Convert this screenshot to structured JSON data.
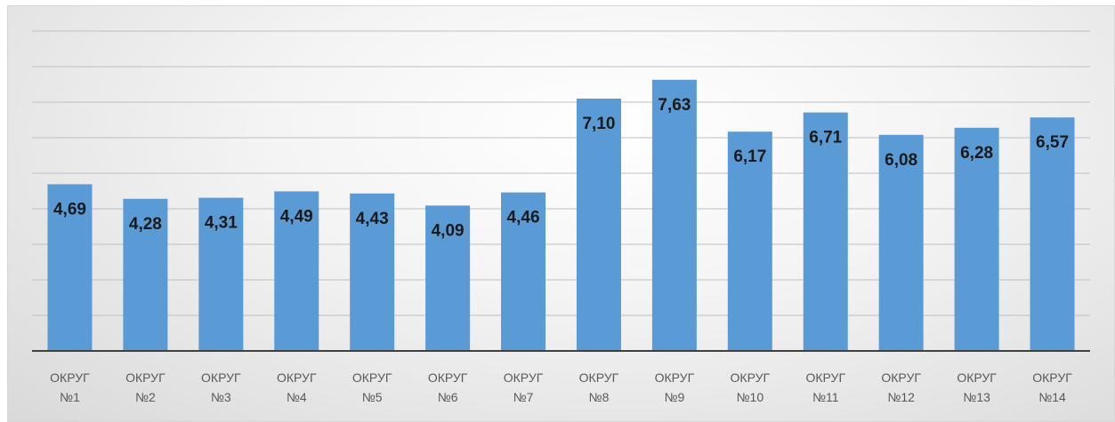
{
  "chart_data": {
    "type": "bar",
    "title": "",
    "xlabel": "",
    "ylabel": "",
    "categories": [
      [
        "ОКРУГ",
        "№1"
      ],
      [
        "ОКРУГ",
        "№2"
      ],
      [
        "ОКРУГ",
        "№3"
      ],
      [
        "ОКРУГ",
        "№4"
      ],
      [
        "ОКРУГ",
        "№5"
      ],
      [
        "ОКРУГ",
        "№6"
      ],
      [
        "ОКРУГ",
        "№7"
      ],
      [
        "ОКРУГ",
        "№8"
      ],
      [
        "ОКРУГ",
        "№9"
      ],
      [
        "ОКРУГ",
        "№10"
      ],
      [
        "ОКРУГ",
        "№11"
      ],
      [
        "ОКРУГ",
        "№12"
      ],
      [
        "ОКРУГ",
        "№13"
      ],
      [
        "ОКРУГ",
        "№14"
      ]
    ],
    "values": [
      4.69,
      4.28,
      4.31,
      4.49,
      4.43,
      4.09,
      4.46,
      7.1,
      7.63,
      6.17,
      6.71,
      6.08,
      6.28,
      6.57
    ],
    "value_labels": [
      "4,69",
      "4,28",
      "4,31",
      "4,49",
      "4,43",
      "4,09",
      "4,46",
      "7,10",
      "7,63",
      "6,17",
      "6,71",
      "6,08",
      "6,28",
      "6,57"
    ],
    "ylim": [
      0,
      9
    ],
    "grid": true,
    "legend": "none",
    "colors": {
      "bar": "#5b9bd5",
      "grid": "#bfbfbf",
      "axis": "#404040"
    }
  }
}
